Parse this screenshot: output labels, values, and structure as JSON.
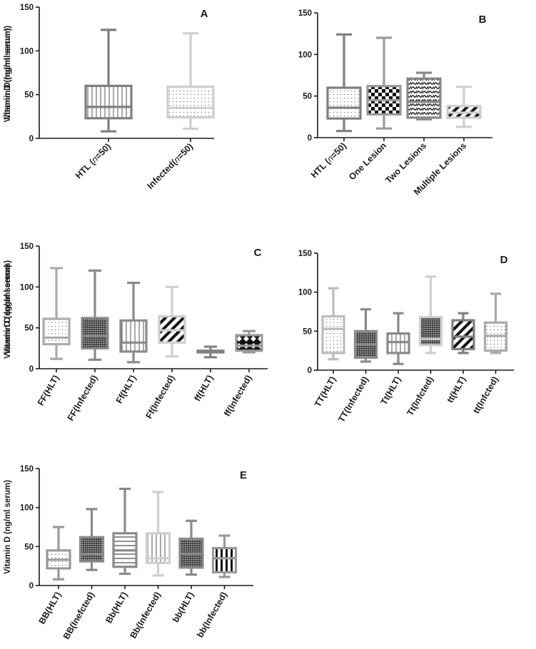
{
  "chart_data": [
    {
      "type": "box",
      "panel": "A",
      "ylabel": "Vitamin D (ng/ml serum)",
      "ylim": [
        0,
        150
      ],
      "yticks": [
        0,
        50,
        100,
        150
      ],
      "categories": [
        {
          "label": "HTL (",
          "italic": "n",
          "rest": "=50)"
        },
        {
          "label": "Infected(",
          "italic": "n",
          "rest": "=50)"
        }
      ],
      "boxes": [
        {
          "min": 8,
          "q1": 23,
          "median": 36,
          "q3": 60,
          "max": 124,
          "color": "#7f7f7f",
          "pattern": "vlines"
        },
        {
          "min": 11,
          "q1": 24,
          "median": 35,
          "q3": 59,
          "max": 120,
          "color": "#cfcfcf",
          "pattern": "dots"
        }
      ]
    },
    {
      "type": "box",
      "panel": "B",
      "ylabel": "Vitamin D (ng/ml serum)",
      "ylim": [
        0,
        150
      ],
      "yticks": [
        0,
        50,
        100,
        150
      ],
      "categories": [
        {
          "label": "HTL (",
          "italic": "n",
          "rest": "=50)"
        },
        {
          "label": "One Lesion"
        },
        {
          "label": "Two Lesions"
        },
        {
          "label": "Multiple Lesions"
        }
      ],
      "boxes": [
        {
          "min": 8,
          "q1": 23,
          "median": 36,
          "q3": 60,
          "max": 124,
          "color": "#7f7f7f",
          "pattern": "dots"
        },
        {
          "min": 11,
          "q1": 28,
          "median": 45,
          "q3": 62,
          "max": 120,
          "color": "#9a9a9a",
          "pattern": "checker"
        },
        {
          "min": 22,
          "q1": 24,
          "median": 43,
          "q3": 71,
          "max": 78,
          "color": "#8a8a8a",
          "pattern": "waves"
        },
        {
          "min": 13,
          "q1": 24,
          "median": 30,
          "q3": 38,
          "max": 61,
          "color": "#cfcfcf",
          "pattern": "diag"
        }
      ]
    },
    {
      "type": "box",
      "panel": "C",
      "ylabel": "Vitamin D (ng/ml serum)",
      "ylim": [
        0,
        150
      ],
      "yticks": [
        0,
        50,
        100,
        150
      ],
      "categories": [
        {
          "label": "FF(HLT)"
        },
        {
          "label": "FF(Infected)"
        },
        {
          "label": "Ff(HLT)"
        },
        {
          "label": "Ff(Infected)"
        },
        {
          "label": "ff(HLT)"
        },
        {
          "label": "ff(Infected)"
        }
      ],
      "boxes": [
        {
          "min": 12,
          "q1": 30,
          "median": 38,
          "q3": 61,
          "max": 123,
          "color": "#ababab",
          "pattern": "dots"
        },
        {
          "min": 11,
          "q1": 25,
          "median": 40,
          "q3": 62,
          "max": 120,
          "color": "#8a8a8a",
          "pattern": "darkdots"
        },
        {
          "min": 8,
          "q1": 21,
          "median": 32,
          "q3": 59,
          "max": 105,
          "color": "#8a8a8a",
          "pattern": "vlines"
        },
        {
          "min": 15,
          "q1": 32,
          "median": 47,
          "q3": 64,
          "max": 100,
          "color": "#cfcfcf",
          "pattern": "diag"
        },
        {
          "min": 14,
          "q1": 20,
          "median": 21,
          "q3": 22,
          "max": 27,
          "color": "#808080",
          "pattern": "none"
        },
        {
          "min": 20,
          "q1": 22,
          "median": 28,
          "q3": 41,
          "max": 46,
          "color": "#9a9a9a",
          "pattern": "diamond"
        }
      ]
    },
    {
      "type": "box",
      "panel": "D",
      "ylabel": "Vitamin D (ng/ml serum)",
      "ylim": [
        0,
        150
      ],
      "yticks": [
        0,
        50,
        100,
        150
      ],
      "categories": [
        {
          "label": "TT(HLT)"
        },
        {
          "label": "TT(Infected)"
        },
        {
          "label": "Tt(HLT)"
        },
        {
          "label": "Tt(Infcted)"
        },
        {
          "label": "tt(HLT)"
        },
        {
          "label": "tt(Infcted)"
        }
      ],
      "boxes": [
        {
          "min": 14,
          "q1": 22,
          "median": 53,
          "q3": 69,
          "max": 105,
          "color": "#bcbcbc",
          "pattern": "dots"
        },
        {
          "min": 11,
          "q1": 16,
          "median": 33,
          "q3": 50,
          "max": 78,
          "color": "#8a8a8a",
          "pattern": "darkdots"
        },
        {
          "min": 8,
          "q1": 22,
          "median": 36,
          "q3": 47,
          "max": 73,
          "color": "#8a8a8a",
          "pattern": "vlines"
        },
        {
          "min": 22,
          "q1": 32,
          "median": 40,
          "q3": 68,
          "max": 120,
          "color": "#cfcfcf",
          "pattern": "darkdots"
        },
        {
          "min": 22,
          "q1": 27,
          "median": 43,
          "q3": 64,
          "max": 73,
          "color": "#808080",
          "pattern": "diag"
        },
        {
          "min": 22,
          "q1": 25,
          "median": 44,
          "q3": 61,
          "max": 98,
          "color": "#ababab",
          "pattern": "dots"
        }
      ]
    },
    {
      "type": "box",
      "panel": "E",
      "ylabel": "Vitamin D (ng/ml serum)",
      "ylim": [
        0,
        150
      ],
      "yticks": [
        0,
        50,
        100,
        150
      ],
      "categories": [
        {
          "label": "BB(HLT)"
        },
        {
          "label": "BB(Inefcted)"
        },
        {
          "label": "Bb(HLT)"
        },
        {
          "label": "Bb(Infected)"
        },
        {
          "label": "bb(HLT)"
        },
        {
          "label": "bb(Infected)"
        }
      ],
      "boxes": [
        {
          "min": 8,
          "q1": 22,
          "median": 33,
          "q3": 45,
          "max": 75,
          "color": "#9a9a9a",
          "pattern": "dots"
        },
        {
          "min": 20,
          "q1": 31,
          "median": 40,
          "q3": 62,
          "max": 98,
          "color": "#8a8a8a",
          "pattern": "darkdots"
        },
        {
          "min": 15,
          "q1": 24,
          "median": 45,
          "q3": 67,
          "max": 124,
          "color": "#8a8a8a",
          "pattern": "hlines"
        },
        {
          "min": 13,
          "q1": 29,
          "median": 35,
          "q3": 67,
          "max": 120,
          "color": "#cfcfcf",
          "pattern": "vlines"
        },
        {
          "min": 14,
          "q1": 23,
          "median": 41,
          "q3": 60,
          "max": 83,
          "color": "#8a8a8a",
          "pattern": "darkdots"
        },
        {
          "min": 11,
          "q1": 17,
          "median": 35,
          "q3": 48,
          "max": 64,
          "color": "#9a9a9a",
          "pattern": "thickvlines"
        }
      ]
    }
  ]
}
